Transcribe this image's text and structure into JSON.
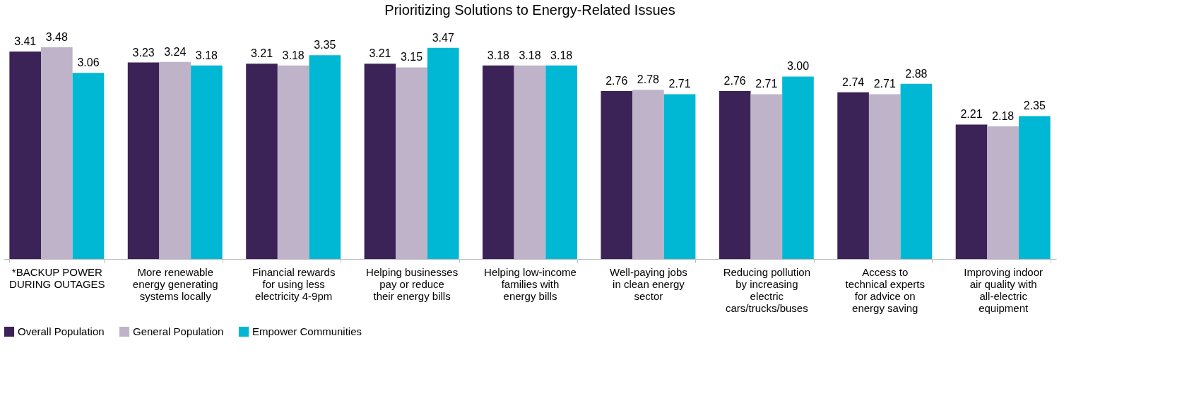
{
  "chart_data": {
    "type": "bar",
    "title": "Prioritizing Solutions to Energy-Related Issues",
    "categories": [
      "*BACKUP POWER DURING OUTAGES",
      "More renewable energy generating systems locally",
      "Financial rewards for using less electricity 4-9pm",
      "Helping businesses pay or reduce their energy bills",
      "Helping low-income families with energy bills",
      "Well-paying jobs in clean energy sector",
      "Reducing pollution by increasing electric cars/trucks/buses",
      "Access to technical experts for advice on energy saving",
      "Improving indoor air quality with all-electric equipment"
    ],
    "series": [
      {
        "name": "Overall Population",
        "color": "#3c2357",
        "values": [
          3.41,
          3.23,
          3.21,
          3.21,
          3.18,
          2.76,
          2.76,
          2.74,
          2.21
        ],
        "value_labels": [
          "3.41",
          "3.23",
          "3.21",
          "3.21",
          "3.18",
          "2.76",
          "2.76",
          "2.74",
          "2.21"
        ]
      },
      {
        "name": "General Population",
        "color": "#bfb3c9",
        "values": [
          3.48,
          3.24,
          3.18,
          3.15,
          3.18,
          2.78,
          2.71,
          2.71,
          2.18
        ],
        "value_labels": [
          "3.48",
          "3.24",
          "3.18",
          "3.15",
          "3.18",
          "2.78",
          "2.71",
          "2.71",
          "2.18"
        ]
      },
      {
        "name": "Empower Communities",
        "color": "#00b8d4",
        "values": [
          3.06,
          3.18,
          3.35,
          3.47,
          3.18,
          2.71,
          3.0,
          2.88,
          2.35
        ],
        "value_labels": [
          "3.06",
          "3.18",
          "3.35",
          "3.47",
          "3.18",
          "2.71",
          "3.00",
          "2.88",
          "2.35"
        ]
      }
    ],
    "tick_labels": "x",
    "legend": "bottom"
  }
}
